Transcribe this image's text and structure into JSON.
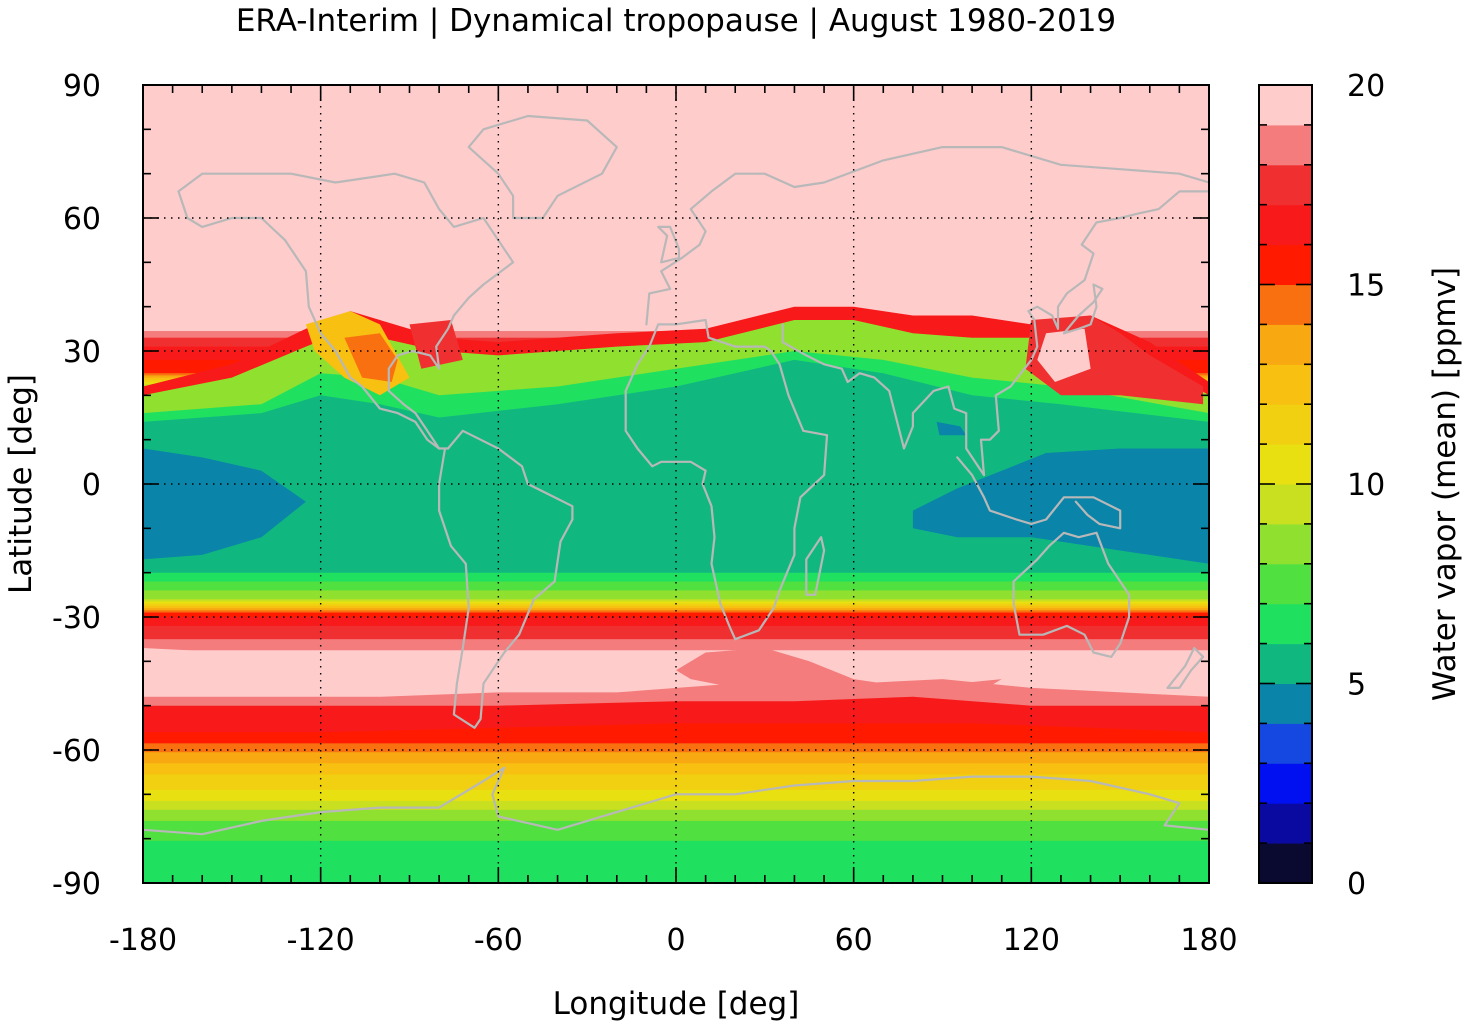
{
  "chart_data": {
    "type": "heatmap",
    "title": "ERA-Interim | Dynamical tropopause | August 1980-2019",
    "xlabel": "Longitude [deg]",
    "ylabel": "Latitude [deg]",
    "xlim": [
      -180,
      180
    ],
    "ylim": [
      -90,
      90
    ],
    "x_ticks": [
      -180,
      -120,
      -60,
      0,
      60,
      120,
      180
    ],
    "y_ticks": [
      90,
      60,
      30,
      0,
      -30,
      -60,
      -90
    ],
    "x_tick_labels": [
      "-180",
      "-120",
      "-60",
      "0",
      "60",
      "120",
      "180"
    ],
    "y_tick_labels": [
      "90",
      "60",
      "30",
      "0",
      "-30",
      "-60",
      "-90"
    ],
    "grid": true,
    "colorbar": {
      "label": "Water vapor (mean) [ppmv]",
      "range": [
        0,
        20
      ],
      "ticks": [
        0,
        5,
        10,
        15,
        20
      ],
      "tick_labels": [
        "0",
        "5",
        "10",
        "15",
        "20"
      ],
      "levels": [
        {
          "from": 0,
          "to": 1,
          "color": "#0a0a30"
        },
        {
          "from": 1,
          "to": 2,
          "color": "#0a0aa0"
        },
        {
          "from": 2,
          "to": 3,
          "color": "#0010f0"
        },
        {
          "from": 3,
          "to": 4,
          "color": "#1448e0"
        },
        {
          "from": 4,
          "to": 5,
          "color": "#0a84a8"
        },
        {
          "from": 5,
          "to": 6,
          "color": "#10b880"
        },
        {
          "from": 6,
          "to": 7,
          "color": "#20e060"
        },
        {
          "from": 7,
          "to": 8,
          "color": "#50e040"
        },
        {
          "from": 8,
          "to": 9,
          "color": "#90e030"
        },
        {
          "from": 9,
          "to": 10,
          "color": "#c8e020"
        },
        {
          "from": 10,
          "to": 11,
          "color": "#e8e010"
        },
        {
          "from": 11,
          "to": 12,
          "color": "#f0d010"
        },
        {
          "from": 12,
          "to": 13,
          "color": "#f8c010"
        },
        {
          "from": 13,
          "to": 14,
          "color": "#f8a810"
        },
        {
          "from": 14,
          "to": 15,
          "color": "#f87010"
        },
        {
          "from": 15,
          "to": 16,
          "color": "#ff1a00"
        },
        {
          "from": 16,
          "to": 17,
          "color": "#f81a1a"
        },
        {
          "from": 17,
          "to": 18,
          "color": "#f03030"
        },
        {
          "from": 18,
          "to": 19,
          "color": "#f47c7c"
        },
        {
          "from": 19,
          "to": 20,
          "color": "#ffcccc"
        }
      ]
    },
    "zonal_structure": [
      {
        "lat": 90,
        "value": 19.8
      },
      {
        "lat": 75,
        "value": 19.8
      },
      {
        "lat": 55,
        "value": 19.6
      },
      {
        "lat": 35,
        "value": 19.2
      },
      {
        "lat": 30,
        "value": 16.5
      },
      {
        "lat": 25,
        "value": 15.2
      },
      {
        "lat": 22,
        "value": 9.5
      },
      {
        "lat": 18,
        "value": 7.4
      },
      {
        "lat": 12,
        "value": 6.3
      },
      {
        "lat": 6,
        "value": 5.5
      },
      {
        "lat": 0,
        "value": 5.3
      },
      {
        "lat": -8,
        "value": 5.4
      },
      {
        "lat": -16,
        "value": 5.8
      },
      {
        "lat": -22,
        "value": 7.0
      },
      {
        "lat": -26,
        "value": 9.0
      },
      {
        "lat": -28,
        "value": 13.0
      },
      {
        "lat": -30,
        "value": 16.2
      },
      {
        "lat": -33,
        "value": 17.3
      },
      {
        "lat": -36,
        "value": 18.4
      },
      {
        "lat": -40,
        "value": 19.8
      },
      {
        "lat": -46,
        "value": 19.8
      },
      {
        "lat": -50,
        "value": 18.4
      },
      {
        "lat": -53,
        "value": 16.8
      },
      {
        "lat": -57,
        "value": 15.6
      },
      {
        "lat": -61,
        "value": 13.8
      },
      {
        "lat": -65,
        "value": 12.2
      },
      {
        "lat": -70,
        "value": 10.6
      },
      {
        "lat": -76,
        "value": 8.0
      },
      {
        "lat": -82,
        "value": 6.6
      },
      {
        "lat": -90,
        "value": 6.6
      }
    ]
  }
}
